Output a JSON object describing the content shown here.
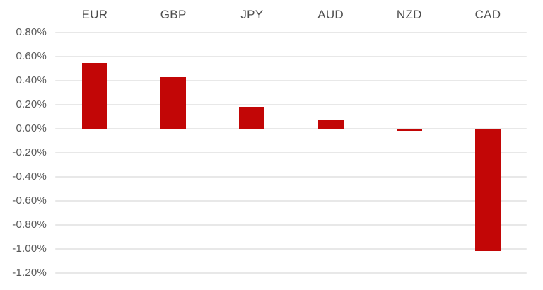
{
  "chart_data": {
    "type": "bar",
    "title": "",
    "xlabel": "",
    "ylabel": "",
    "categories": [
      "EUR",
      "GBP",
      "JPY",
      "AUD",
      "NZD",
      "CAD"
    ],
    "values": [
      0.55,
      0.43,
      0.18,
      0.07,
      -0.02,
      -1.02
    ],
    "value_unit": "%",
    "ylim": [
      -1.2,
      0.8
    ],
    "ytick_step": 0.2,
    "ytick_labels": [
      "0.80%",
      "0.60%",
      "0.40%",
      "0.20%",
      "0.00%",
      "-0.20%",
      "-0.40%",
      "-0.60%",
      "-0.80%",
      "-1.00%",
      "-1.20%"
    ],
    "grid": true,
    "legend_position": "none",
    "category_labels_position": "top",
    "colors": {
      "bar": "#c20606",
      "gridline": "#e8e8e8",
      "category_label": "#4d4d4d",
      "ytick_label": "#595959",
      "background": "#ffffff"
    }
  }
}
